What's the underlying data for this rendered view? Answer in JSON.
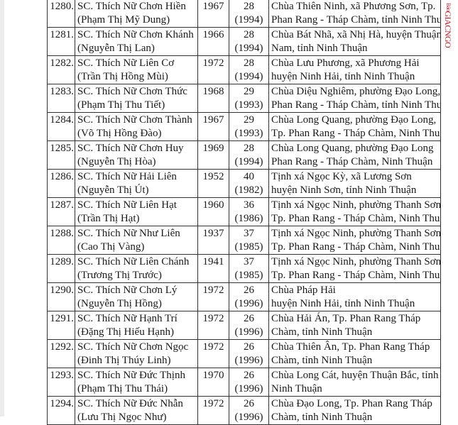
{
  "watermark": {
    "prefix": "Báo",
    "name": "GIACNGO",
    "color": "#d4141c"
  },
  "rows": [
    {
      "no": "1280.",
      "name": "SC. Thích Nữ Chơn Hiền",
      "lay": "(Phạm Thị Mỹ Dung)",
      "born": "1967",
      "age": "28",
      "year": "(1994)",
      "addr1": "Chùa Thiên Ninh, xã Phương Sơn, Tp.",
      "addr2": "Phan Rang - Tháp Chàm, tỉnh Ninh Thuận"
    },
    {
      "no": "1281.",
      "name": "SC. Thích Nữ Chơn Khánh",
      "lay": "(Nguyễn Thị Lan)",
      "born": "1966",
      "age": "28",
      "year": "(1994)",
      "addr1": "Chùa Bát Nhã, xã Nhị Hà, huyện Thuận",
      "addr2": "Nam, tỉnh Ninh Thuận"
    },
    {
      "no": "1282.",
      "name": "SC. Thích Nữ Liên Cơ",
      "lay": "(Trần Thị Hồng Mùi)",
      "born": "1972",
      "age": "28",
      "year": "(1994)",
      "addr1": "Chùa Lưu Phương, xã Phương Hải",
      "addr2": "huyện Ninh Hải, tỉnh Ninh Thuận"
    },
    {
      "no": "1283.",
      "name": "SC. Thích Nữ Chơn Thức",
      "lay": "(Phạm Thị Thu Tiết)",
      "born": "1968",
      "age": "29",
      "year": "(1993)",
      "addr1": "Chùa Diệu Nghiêm, phường Đạo Long, Tp.",
      "addr2": "Phan Rang - Tháp Chàm, tỉnh Ninh Thuận"
    },
    {
      "no": "1284.",
      "name": "SC. Thích Nữ Chơn Thành",
      "lay": "(Võ Thị Hồng Đào)",
      "born": "1967",
      "age": "29",
      "year": "(1993)",
      "addr1": "Chùa Long Quang, phường Đạo Long,",
      "addr2": "Tp. Phan Rang - Tháp Chàm, Ninh Thuận"
    },
    {
      "no": "1285.",
      "name": "SC. Thích Nữ Chơn Huy",
      "lay": "(Nguyễn Thị Hòa)",
      "born": "1969",
      "age": "28",
      "year": "(1994)",
      "addr1": "Chùa Long Quang, phường Đạo Long",
      "addr2": "Phan Rang - Tháp Chàm, Ninh Thuận"
    },
    {
      "no": "1286.",
      "name": "SC. Thích Nữ Hải Liên",
      "lay": "(Nguyễn Thị Út)",
      "born": "1952",
      "age": "40",
      "year": "(1982)",
      "addr1": "Tịnh xá Ngọc Kỳ, xã Lương Sơn",
      "addr2": "huyện Ninh Sơn, tỉnh Ninh Thuận"
    },
    {
      "no": "1287.",
      "name": "SC. Thích Nữ Liên Hạt",
      "lay": "(Trần Thị Hạt)",
      "born": "1960",
      "age": "36",
      "year": "(1986)",
      "addr1": "Tịnh xá Ngọc Ninh, phường Thanh Sơn,",
      "addr2": "Tp. Phan Rang - Tháp Chàm, Ninh Thuận"
    },
    {
      "no": "1288.",
      "name": "SC. Thích Nữ Như Liên",
      "lay": "(Cao Thị Vàng)",
      "born": "1937",
      "age": "37",
      "year": "(1985)",
      "addr1": "Tịnh xá Ngọc Ninh, phường Thanh Sơn,",
      "addr2": "Tp. Phan Rang - Tháp Chàm, Ninh Thuận"
    },
    {
      "no": "1289.",
      "name": "SC. Thích Nữ Liên Chánh",
      "lay": "(Trương Thị Trước)",
      "born": "1941",
      "age": "37",
      "year": "(1985)",
      "addr1": "Tịnh xá Ngọc Ninh, phường Thanh Sơn,",
      "addr2": "Tp. Phan Rang - Tháp Chàm, Ninh Thuận"
    },
    {
      "no": "1290.",
      "name": "SC. Thích Nữ Chơn Lý",
      "lay": "(Nguyễn Thị Hồng)",
      "born": "1972",
      "age": "26",
      "year": "(1996)",
      "addr1": "Chùa Pháp Hải",
      "addr2": "huyện Ninh Hải, tỉnh Ninh Thuận"
    },
    {
      "no": "1291.",
      "name": "SC. Thích Nữ Hạnh Trí",
      "lay": "(Đặng Thị Hiếu Hạnh)",
      "born": "1972",
      "age": "26",
      "year": "(1996)",
      "addr1": "Chùa Hải Án, Tp. Phan Rang Tháp",
      "addr2": "Chàm, tỉnh Ninh Thuận"
    },
    {
      "no": "1292.",
      "name": "SC. Thích Nữ Chơn Ngọc",
      "lay": "(Đinh Thị Thúy Linh)",
      "born": "1972",
      "age": "26",
      "year": "(1996)",
      "addr1": "Chùa Thiên Ân, Tp. Phan Rang Tháp",
      "addr2": "Chàm, tỉnh Ninh Thuận"
    },
    {
      "no": "1293.",
      "name": "SC. Thích Nữ Đức Thịnh",
      "lay": "(Phạm Thị Thu Thái)",
      "born": "1970",
      "age": "26",
      "year": "(1996)",
      "addr1": "Chùa Long Cát, huyện Thuận Bắc, tỉnh",
      "addr2": "Ninh Thuận"
    },
    {
      "no": "1294.",
      "name": "SC. Thích Nữ Đức Nhẫn",
      "lay": "(Lưu Thị Ngọc Như)",
      "born": "1972",
      "age": "26",
      "year": "(1996)",
      "addr1": "Chùa Đạo Long, Tp. Phan Rang Tháp",
      "addr2": "Chàm, tỉnh Ninh Thuận"
    }
  ]
}
